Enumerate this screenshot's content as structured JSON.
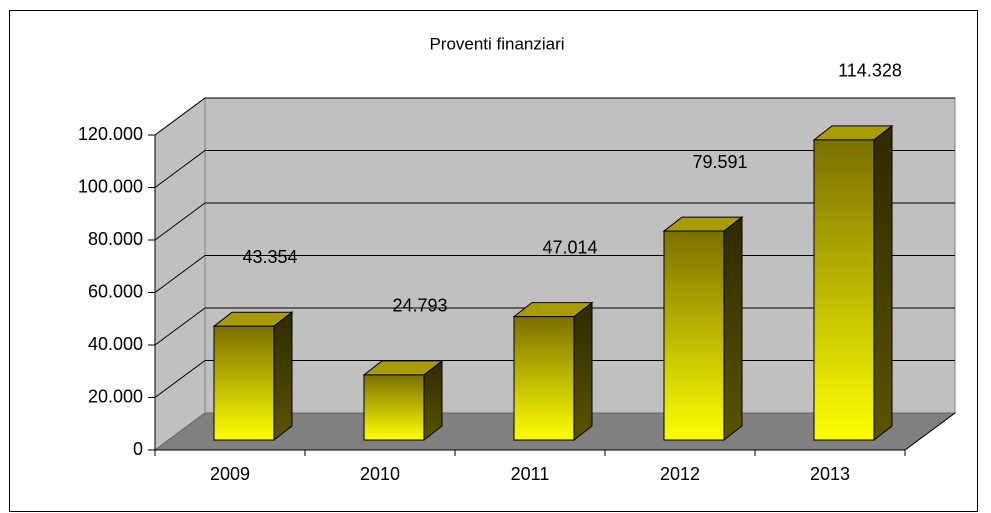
{
  "chart_data": {
    "type": "bar3d",
    "title": "Proventi finanziari",
    "categories": [
      "2009",
      "2010",
      "2011",
      "2012",
      "2013"
    ],
    "values": [
      43354,
      24793,
      47014,
      79591,
      114328
    ],
    "value_labels": [
      "43.354",
      "24.793",
      "47.014",
      "79.591",
      "114.328"
    ],
    "color": "#ffff00",
    "ylim": [
      0,
      120000
    ],
    "yticks": [
      0,
      {
        "value": 20000,
        "label": "20.000"
      },
      {
        "value": 40000,
        "label": "40.000"
      },
      {
        "value": 60000,
        "label": "60.000"
      },
      {
        "value": 80000,
        "label": "80.000"
      },
      {
        "value": 100000,
        "label": "100.000"
      },
      {
        "value": 120000,
        "label": "120.000"
      }
    ],
    "grid": true
  }
}
